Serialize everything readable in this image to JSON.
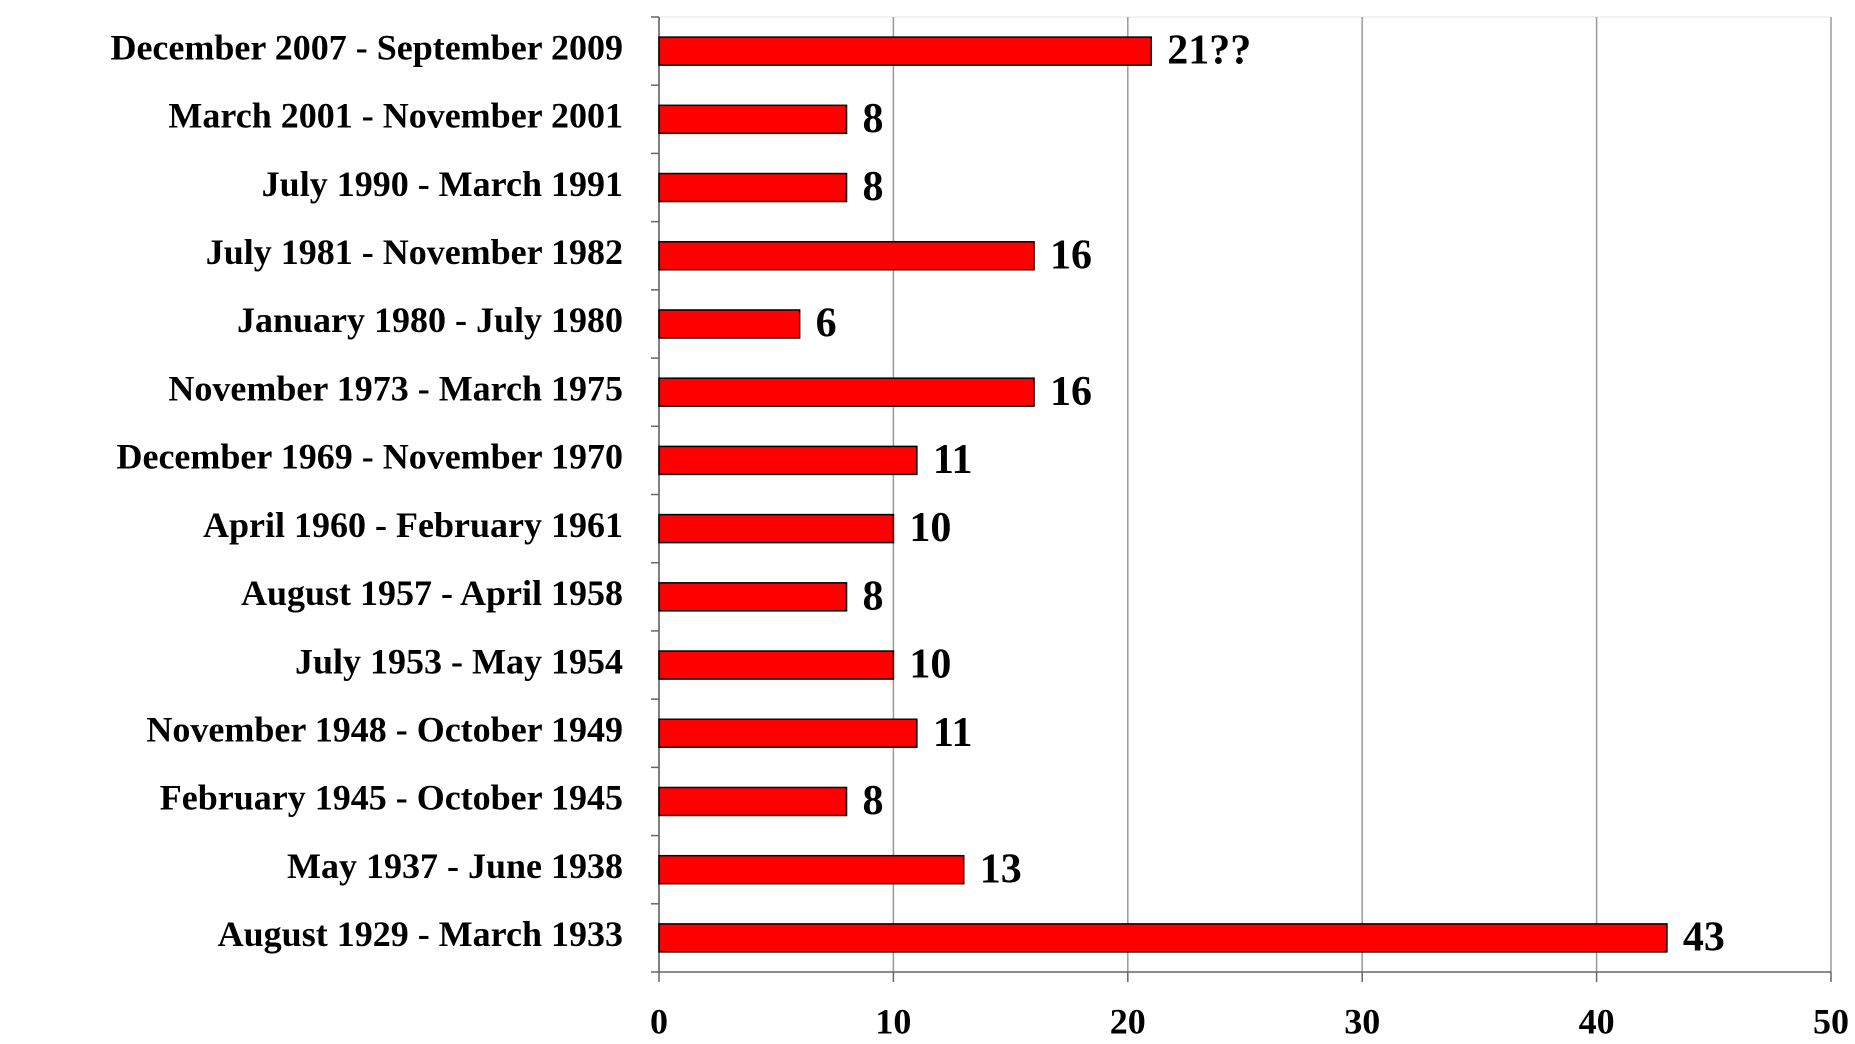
{
  "chart_data": {
    "type": "bar",
    "orientation": "horizontal",
    "categories": [
      "December 2007 - September 2009",
      "March 2001 - November 2001",
      "July 1990 - March 1991",
      "July 1981 - November 1982",
      "January 1980 - July 1980",
      "November 1973 - March 1975",
      "December 1969 - November 1970",
      "April 1960 - February 1961",
      "August 1957 - April 1958",
      "July 1953 - May 1954",
      "November 1948 - October 1949",
      "February 1945 - October 1945",
      "May 1937 - June 1938",
      "August 1929 - March 1933"
    ],
    "values": [
      21,
      8,
      8,
      16,
      6,
      16,
      11,
      10,
      8,
      10,
      11,
      8,
      13,
      43
    ],
    "value_labels": [
      "21??",
      "8",
      "8",
      "16",
      "6",
      "16",
      "11",
      "10",
      "8",
      "10",
      "11",
      "8",
      "13",
      "43"
    ],
    "color": "#ff0000",
    "xlim": [
      0,
      50
    ],
    "xticks": [
      0,
      10,
      20,
      30,
      40,
      50
    ],
    "grid": true
  }
}
